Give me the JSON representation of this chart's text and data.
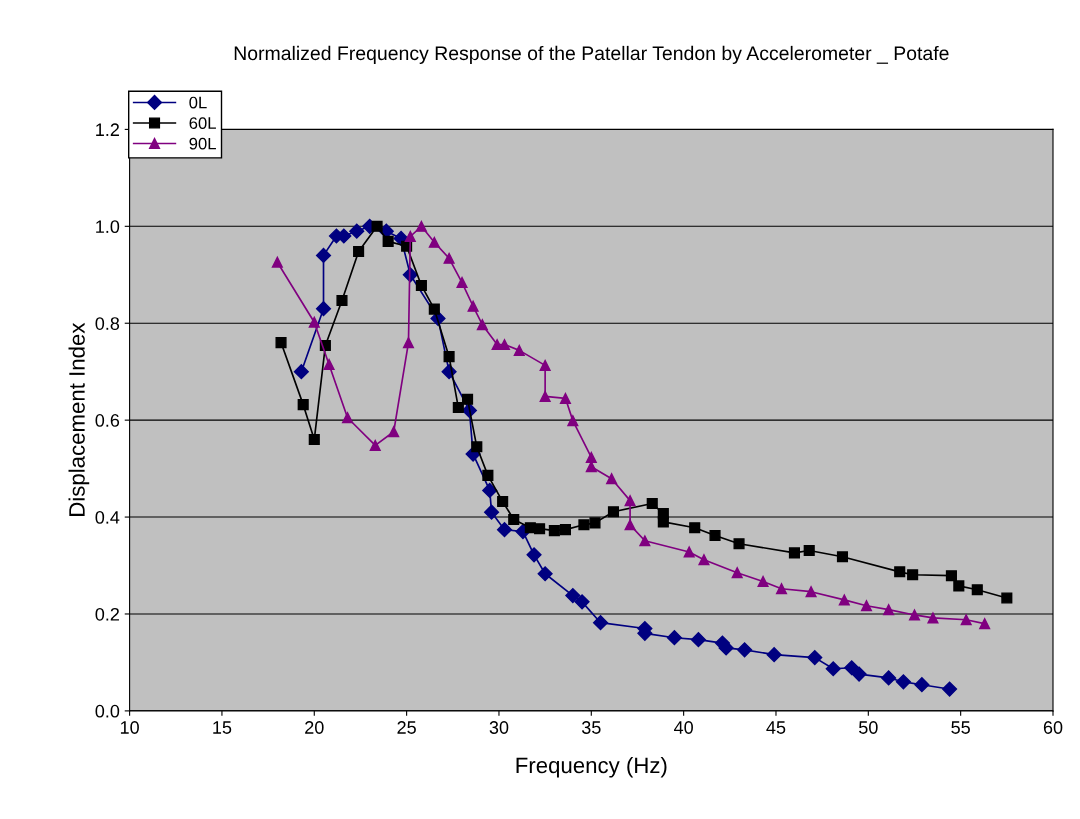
{
  "chart_data": {
    "type": "line",
    "title": "Normalized Frequency Response of the Patellar Tendon by Accelerometer _ Potafe",
    "xlabel": "Frequency (Hz)",
    "ylabel": "Displacement Index",
    "xlim": [
      10,
      60
    ],
    "xticks": [
      10,
      15,
      20,
      25,
      30,
      35,
      40,
      45,
      50,
      55,
      60
    ],
    "ylim": [
      0,
      1.2
    ],
    "yticks": [
      {
        "value": 0,
        "label": "0.0"
      },
      {
        "value": 0.2,
        "label": "0.2"
      },
      {
        "value": 0.4,
        "label": "0.4"
      },
      {
        "value": 0.6,
        "label": "0.6"
      },
      {
        "value": 0.8,
        "label": "0.8"
      },
      {
        "value": 1.0,
        "label": "1.0"
      },
      {
        "value": 1.2,
        "label": "1.2"
      }
    ],
    "grid": "y",
    "legend": "top left",
    "series": [
      {
        "name": "0L",
        "color": "#000080",
        "marker": "diamond",
        "x": [
          19.3,
          20.5,
          20.5,
          21.2,
          21.6,
          22.3,
          23.0,
          23.9,
          24.7,
          25.2,
          26.7,
          27.3,
          28.4,
          28.6,
          29.5,
          29.6,
          30.3,
          31.3,
          31.9,
          32.5,
          34.0,
          34.5,
          35.5,
          37.9,
          37.9,
          39.5,
          40.8,
          42.1,
          42.3,
          43.3,
          44.9,
          47.1,
          48.1,
          49.1,
          49.5,
          51.1,
          51.9,
          52.9,
          54.4
        ],
        "values": [
          0.7,
          0.83,
          0.94,
          0.98,
          0.98,
          0.99,
          1.0,
          0.99,
          0.975,
          0.9,
          0.81,
          0.7,
          0.62,
          0.53,
          0.455,
          0.41,
          0.374,
          0.37,
          0.322,
          0.283,
          0.238,
          0.225,
          0.182,
          0.17,
          0.16,
          0.151,
          0.147,
          0.14,
          0.13,
          0.126,
          0.116,
          0.11,
          0.087,
          0.089,
          0.076,
          0.068,
          0.06,
          0.054,
          0.045
        ]
      },
      {
        "name": "60L",
        "color": "#000000",
        "marker": "square",
        "x": [
          18.2,
          19.4,
          20.0,
          20.6,
          21.5,
          22.4,
          23.4,
          24.0,
          25.0,
          25.8,
          26.5,
          27.3,
          27.8,
          28.3,
          28.8,
          29.4,
          30.2,
          30.8,
          31.7,
          32.2,
          33.0,
          33.6,
          34.6,
          35.2,
          36.2,
          38.3,
          38.9,
          38.9,
          40.6,
          41.7,
          43.0,
          46.0,
          46.8,
          48.6,
          51.7,
          52.4,
          54.5,
          54.9,
          55.9,
          57.5
        ],
        "values": [
          0.76,
          0.632,
          0.56,
          0.754,
          0.847,
          0.948,
          1.0,
          0.969,
          0.959,
          0.878,
          0.829,
          0.731,
          0.626,
          0.643,
          0.545,
          0.486,
          0.432,
          0.395,
          0.378,
          0.376,
          0.372,
          0.374,
          0.384,
          0.388,
          0.411,
          0.428,
          0.407,
          0.39,
          0.378,
          0.362,
          0.345,
          0.326,
          0.331,
          0.318,
          0.287,
          0.281,
          0.279,
          0.258,
          0.25,
          0.233
        ]
      },
      {
        "name": "90L",
        "color": "#800080",
        "marker": "triangle",
        "x": [
          18.0,
          20.0,
          20.8,
          21.8,
          23.3,
          24.3,
          25.1,
          25.2,
          25.8,
          26.5,
          27.3,
          28.0,
          28.6,
          29.1,
          29.9,
          30.3,
          31.1,
          32.5,
          32.5,
          33.6,
          34.0,
          35.0,
          35.0,
          36.1,
          37.1,
          37.1,
          37.9,
          40.3,
          41.1,
          42.9,
          44.3,
          45.3,
          46.9,
          48.7,
          49.9,
          51.1,
          52.5,
          53.5,
          55.3,
          56.3
        ],
        "values": [
          0.926,
          0.802,
          0.715,
          0.605,
          0.548,
          0.576,
          0.76,
          0.979,
          1.0,
          0.967,
          0.934,
          0.884,
          0.835,
          0.797,
          0.756,
          0.756,
          0.744,
          0.713,
          0.649,
          0.645,
          0.599,
          0.523,
          0.504,
          0.479,
          0.434,
          0.384,
          0.351,
          0.328,
          0.312,
          0.285,
          0.267,
          0.252,
          0.246,
          0.229,
          0.217,
          0.209,
          0.198,
          0.192,
          0.188,
          0.18
        ]
      }
    ]
  }
}
